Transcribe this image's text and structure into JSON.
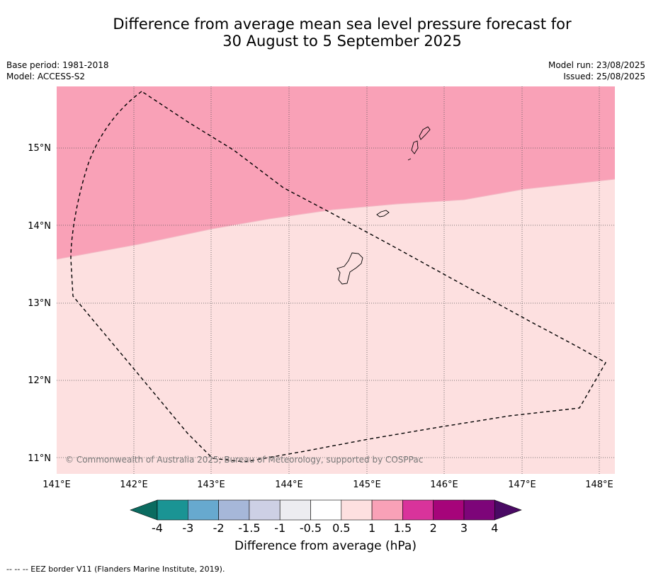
{
  "title": {
    "line1": "Difference from average mean sea level pressure forecast for",
    "line2": "30 August to 5 September 2025"
  },
  "meta_left": {
    "base_period": "Base period: 1981-2018",
    "model": "Model: ACCESS-S2"
  },
  "meta_right": {
    "model_run": "Model run: 23/08/2025",
    "issued": "Issued: 25/08/2025"
  },
  "map": {
    "lon_labels": [
      "141°E",
      "142°E",
      "143°E",
      "144°E",
      "145°E",
      "146°E",
      "147°E",
      "148°E"
    ],
    "lat_labels": [
      "15°N",
      "14°N",
      "13°N",
      "12°N",
      "11°N"
    ],
    "copyright": "© Commonwealth of Australia 2025, Bureau of Meteorology, supported by COSPPac",
    "fill_colors": {
      "high": "#f9a1b7",
      "low": "#fde0e0"
    }
  },
  "colorbar": {
    "title": "Difference from average (hPa)",
    "labels": [
      "-4",
      "-3",
      "-2",
      "-1.5",
      "-1",
      "-0.5",
      "0.5",
      "1",
      "1.5",
      "2",
      "3",
      "4"
    ],
    "colors": [
      "#0b6b60",
      "#1a9494",
      "#67a9cf",
      "#a6b7d9",
      "#cdd0e5",
      "#ececf0",
      "#ffffff",
      "#fde0e0",
      "#f9a1b7",
      "#d9339b",
      "#a6047a",
      "#7d0579",
      "#4a0a64"
    ]
  },
  "footnote": "--  --  -- EEZ border V11 (Flanders Marine Institute, 2019)."
}
